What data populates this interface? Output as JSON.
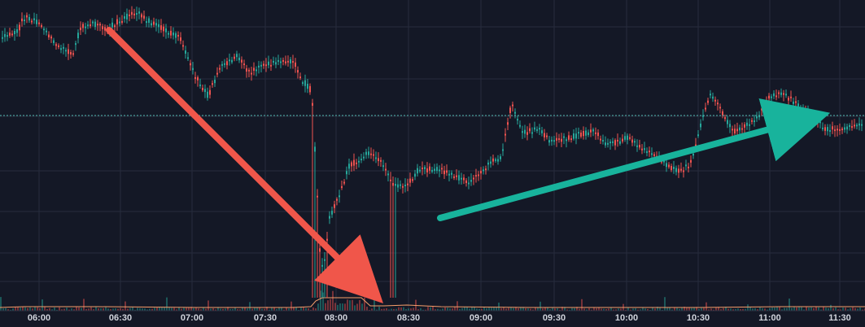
{
  "chart_data": {
    "type": "candlestick",
    "x_ticks": [
      "06:00",
      "06:30",
      "07:00",
      "07:30",
      "08:00",
      "08:30",
      "09:00",
      "09:30",
      "10:00",
      "10:30",
      "11:00",
      "11:30"
    ],
    "grid": true,
    "price_line": true,
    "volume_panel": true,
    "colors": {
      "background": "#141826",
      "grid": "#272c3d",
      "up": "#26a69a",
      "down": "#ef5350",
      "volume_line": "#f59e6b",
      "price_line": "#4fb8b0",
      "annotation_down": "#f0564a",
      "annotation_up": "#18b39c"
    },
    "annotations": [
      {
        "name": "down-trend-arrow",
        "direction": "down"
      },
      {
        "name": "up-trend-arrow",
        "direction": "up"
      }
    ],
    "series": [
      {
        "kind": "price"
      },
      {
        "kind": "volume"
      }
    ]
  }
}
